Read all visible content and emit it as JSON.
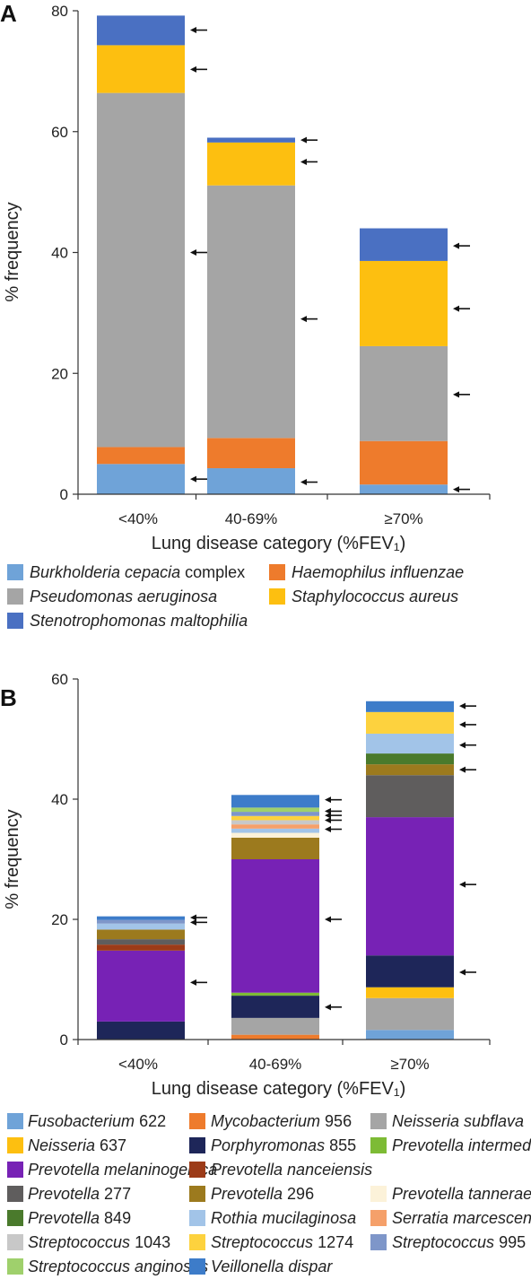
{
  "chart_data": [
    {
      "panel": "A",
      "type": "bar",
      "stacked": true,
      "xlabel": "Lung disease category (%FEV₁)",
      "ylabel": "% frequency",
      "ylim": [
        0,
        80
      ],
      "yticks": [
        0,
        20,
        40,
        60,
        80
      ],
      "categories": [
        "<40%",
        "40-69%",
        "≥70%"
      ],
      "grid": false,
      "legend_position": "bottom",
      "series": [
        {
          "name": "Burkholderia cepacia complex",
          "italic": "Burkholderia cepacia",
          "suffix": " complex",
          "color": "#6fa3d8",
          "values": [
            5,
            4.3,
            1.6
          ]
        },
        {
          "name": "Haemophilus influenzae",
          "italic": "Haemophilus influenzae",
          "suffix": "",
          "color": "#ee7b2c",
          "values": [
            2.8,
            5,
            7.2
          ]
        },
        {
          "name": "Pseudomonas aeruginosa",
          "italic": "Pseudomonas aeruginosa",
          "suffix": "",
          "color": "#a5a5a5",
          "values": [
            58.6,
            41.8,
            15.7
          ]
        },
        {
          "name": "Staphylococcus aureus",
          "italic": "Staphylococcus aureus",
          "suffix": "",
          "color": "#fdbf10",
          "values": [
            7.9,
            7.1,
            14.1
          ]
        },
        {
          "name": "Stenotrophomonas maltophilia",
          "italic": "Stenotrophomonas maltophilia",
          "suffix": "",
          "color": "#4a70c2",
          "values": [
            4.9,
            0.8,
            5.4
          ]
        }
      ],
      "arrows": [
        [
          2.5,
          40,
          70.3,
          76.8
        ],
        [
          2,
          29,
          55,
          58.6
        ],
        [
          0.8,
          16.5,
          30.7,
          41.1
        ]
      ]
    },
    {
      "panel": "B",
      "type": "bar",
      "stacked": true,
      "xlabel": "Lung disease category (%FEV₁)",
      "ylabel": "% frequency",
      "ylim": [
        0,
        60
      ],
      "yticks": [
        0,
        20,
        40,
        60
      ],
      "categories": [
        "<40%",
        "40-69%",
        "≥70%"
      ],
      "grid": false,
      "legend_position": "bottom",
      "series": [
        {
          "name": "Fusobacterium 622",
          "italic": "Fusobacterium",
          "suffix": " 622",
          "color": "#6fa3d8",
          "values": [
            0,
            0,
            1.6
          ]
        },
        {
          "name": "Mycobacterium 956",
          "italic": "Mycobacterium",
          "suffix": " 956",
          "color": "#ee7b2c",
          "values": [
            0,
            0.8,
            0
          ]
        },
        {
          "name": "Neisseria subflava",
          "italic": "Neisseria subflava",
          "suffix": "",
          "color": "#a5a5a5",
          "values": [
            0,
            2.8,
            5.3
          ]
        },
        {
          "name": "Neisseria 637",
          "italic": "Neisseria",
          "suffix": " 637",
          "color": "#fdbf10",
          "values": [
            0,
            0,
            1.8
          ]
        },
        {
          "name": "Porphyromonas 855",
          "italic": "Porphyromonas",
          "suffix": " 855",
          "color": "#1e2659",
          "values": [
            3,
            3.7,
            5.3
          ]
        },
        {
          "name": "Prevotella intermedia",
          "italic": "Prevotella intermedia",
          "suffix": "",
          "color": "#7dbb35",
          "values": [
            0,
            0.5,
            0
          ]
        },
        {
          "name": "Prevotella melaninogenica",
          "italic": "Prevotella melaninogenica",
          "suffix": "",
          "color": "#7722b5",
          "values": [
            11.8,
            22.2,
            23
          ]
        },
        {
          "name": "Prevotella nanceiensis",
          "italic": "Prevotella nanceiensis",
          "suffix": "",
          "color": "#9c3b18",
          "values": [
            1,
            0,
            0
          ]
        },
        {
          "name": "Prevotella 277",
          "italic": "Prevotella",
          "suffix": " 277",
          "color": "#5f5d5d",
          "values": [
            0.9,
            0,
            7
          ]
        },
        {
          "name": "Prevotella 296",
          "italic": "Prevotella",
          "suffix": " 296",
          "color": "#9c7a1e",
          "values": [
            1.6,
            3.6,
            1.8
          ]
        },
        {
          "name": "Prevotella tannerae",
          "italic": "Prevotella tannerae",
          "suffix": "",
          "color": "#fcf2d9",
          "values": [
            0,
            0.8,
            0
          ]
        },
        {
          "name": "Prevotella 849",
          "italic": "Prevotella",
          "suffix": " 849",
          "color": "#4a7a2c",
          "values": [
            0,
            0,
            1.8
          ]
        },
        {
          "name": "Rothia mucilaginosa",
          "italic": "Rothia mucilaginosa",
          "suffix": "",
          "color": "#a2c4e8",
          "values": [
            1,
            0.7,
            3.3
          ]
        },
        {
          "name": "Serratia marcescens",
          "italic": "Serratia marcescens",
          "suffix": "",
          "color": "#f5a06a",
          "values": [
            0,
            0.7,
            0
          ]
        },
        {
          "name": "Streptococcus 1043",
          "italic": "Streptococcus",
          "suffix": " 1043",
          "color": "#c8c8c8",
          "values": [
            0,
            0.7,
            0
          ]
        },
        {
          "name": "Streptococcus 1274",
          "italic": "Streptococcus",
          "suffix": " 1274",
          "color": "#fdd23e",
          "values": [
            0,
            0.7,
            3.6
          ]
        },
        {
          "name": "Streptococcus 995",
          "italic": "Streptococcus",
          "suffix": " 995",
          "color": "#7e96c9",
          "values": [
            0.6,
            0.7,
            0
          ]
        },
        {
          "name": "Streptococcus anginosus",
          "italic": "Streptococcus anginosus",
          "suffix": "",
          "color": "#9fd06c",
          "values": [
            0,
            0.7,
            0
          ]
        },
        {
          "name": "Veillonella dispar",
          "italic": "Veillonella dispar",
          "suffix": "",
          "color": "#3d7cc9",
          "values": [
            0.6,
            2.1,
            1.8
          ]
        }
      ],
      "arrows": [
        [
          9.5,
          19.5,
          20.3
        ],
        [
          5.4,
          20,
          35,
          36.5,
          37.3,
          38,
          39.9
        ],
        [
          11.2,
          25.8,
          44.9,
          49,
          52.4,
          55.5
        ]
      ]
    }
  ]
}
